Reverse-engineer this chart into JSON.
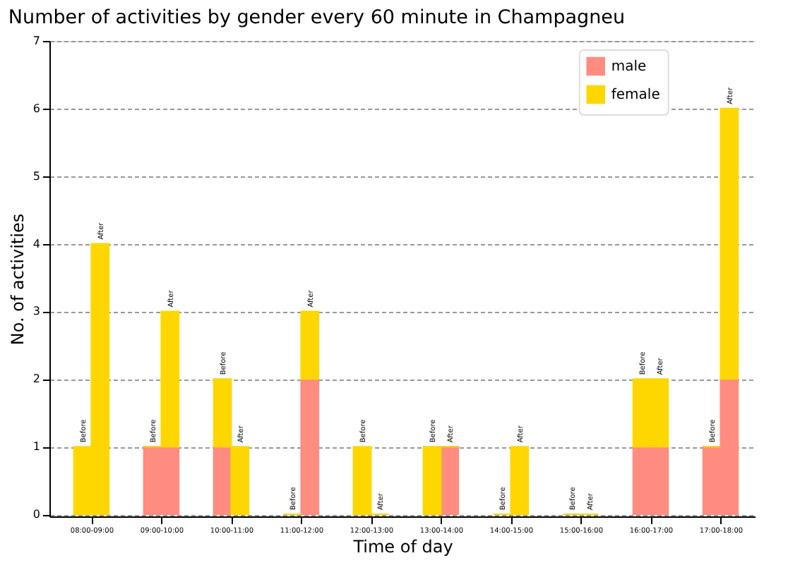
{
  "chart_data": {
    "type": "bar",
    "title": "Number of activities by gender every 60 minute in Champagneu",
    "xlabel": "Time of day",
    "ylabel": "No. of activities",
    "stacked": true,
    "categories": [
      "Before",
      "After",
      "Before",
      "After",
      "Before",
      "After",
      "Before",
      "After",
      "Before",
      "After",
      "Before",
      "After",
      "Before",
      "After",
      "Before",
      "After",
      "Before",
      "After",
      "Before",
      "After"
    ],
    "ylim": [
      -0.03,
      7
    ],
    "yticks": [
      0,
      1,
      2,
      3,
      4,
      5,
      6,
      7
    ],
    "grid": "y",
    "legend": "top right",
    "series": [
      {
        "name": "male",
        "color": "#ff8c80",
        "values": [
          0,
          0,
          1,
          1,
          1,
          0,
          0,
          2,
          0,
          0,
          0,
          1,
          0,
          0,
          0,
          0,
          1,
          1,
          1,
          2
        ]
      },
      {
        "name": "female",
        "color": "#ffd700",
        "values": [
          1,
          4,
          0,
          2,
          1,
          1,
          0,
          1,
          1,
          0,
          1,
          0,
          0,
          1,
          0,
          0,
          1,
          1,
          0,
          4
        ]
      }
    ],
    "annotations": [
      "08:00-09:00",
      "09:00-10:00",
      "10:00-11:00",
      "11:00-12:00",
      "12:00-13:00",
      "13:00-14:00",
      "14:00-15:00",
      "15:00-16:00",
      "16:00-17:00",
      "17:00-18:00"
    ]
  }
}
